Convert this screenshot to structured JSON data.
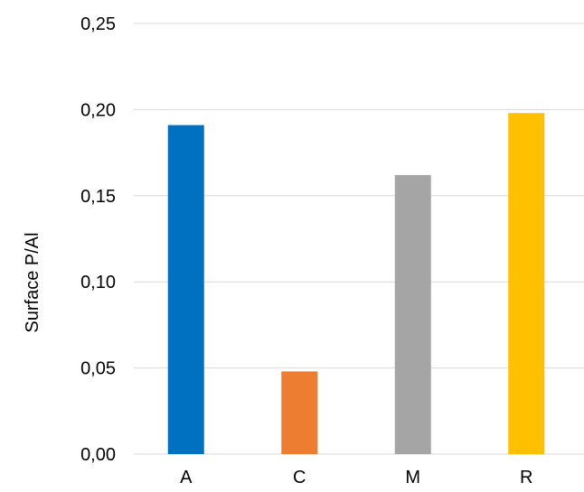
{
  "chart_data": {
    "type": "bar",
    "categories": [
      "A",
      "C",
      "M",
      "R"
    ],
    "values": [
      0.191,
      0.048,
      0.162,
      0.198
    ],
    "colors": [
      "#0070C0",
      "#ED7D31",
      "#A5A5A5",
      "#FFC000"
    ],
    "xlabel": "",
    "ylabel": "Surface P/Al",
    "ylim": [
      0,
      0.25
    ],
    "yticks": [
      0.0,
      0.05,
      0.1,
      0.15,
      0.2,
      0.25
    ],
    "ytick_labels": [
      "0,00",
      "0,05",
      "0,10",
      "0,15",
      "0,20",
      "0,25"
    ],
    "grid": true,
    "gridline_color": "#D9D9D9",
    "legend": "none"
  }
}
